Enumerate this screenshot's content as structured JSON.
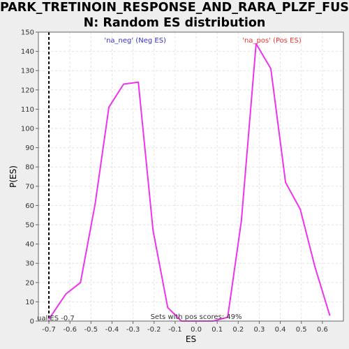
{
  "chart_data": {
    "type": "line",
    "title_line1": "PARK_TRETINOIN_RESPONSE_AND_RARA_PLZF_FUSIO",
    "title_line2": "N: Random ES distribution",
    "xlabel": "ES",
    "ylabel": "P(ES)",
    "xlim": [
      -0.75,
      0.7
    ],
    "ylim": [
      0,
      150
    ],
    "x_ticks": [
      -0.7,
      -0.6,
      -0.5,
      -0.4,
      -0.3,
      -0.2,
      -0.1,
      0.0,
      0.1,
      0.2,
      0.3,
      0.4,
      0.5,
      0.6
    ],
    "x_tick_labels": [
      "-0.7",
      "-0.6",
      "-0.5",
      "-0.4",
      "-0.3",
      "-0.2",
      "-0.1",
      "0.0",
      "0.1",
      "0.2",
      "0.3",
      "0.4",
      "0.5",
      "0.6"
    ],
    "y_ticks": [
      0,
      10,
      20,
      30,
      40,
      50,
      60,
      70,
      80,
      90,
      100,
      110,
      120,
      130,
      140,
      150
    ],
    "grid": true,
    "series": [
      {
        "color": "#ee33ee",
        "x": [
          -0.7,
          -0.62,
          -0.55,
          -0.48,
          -0.415,
          -0.345,
          -0.275,
          -0.205,
          -0.135,
          -0.07,
          0.0,
          0.08,
          0.15,
          0.215,
          0.285,
          0.355,
          0.425,
          0.495,
          0.565,
          0.635
        ],
        "y": [
          1,
          14,
          20,
          61,
          111,
          123,
          124,
          47,
          7,
          0,
          0,
          0,
          2,
          52,
          144,
          131,
          72,
          58,
          28,
          3
        ]
      }
    ],
    "actual_es_line": {
      "x": -0.7,
      "color": "#000000",
      "style": "dashed"
    },
    "annotations": {
      "neg": {
        "text": "'na_neg' (Neg ES)",
        "color": "#3333cc"
      },
      "pos": {
        "text": "'na_pos' (Pos ES)",
        "color": "#ee3333"
      },
      "pos_scores": {
        "text": "Sets with pos scores: 49%",
        "color": "#333333"
      },
      "actual": {
        "text": "ual ES -0.7",
        "color": "#333333"
      }
    }
  }
}
